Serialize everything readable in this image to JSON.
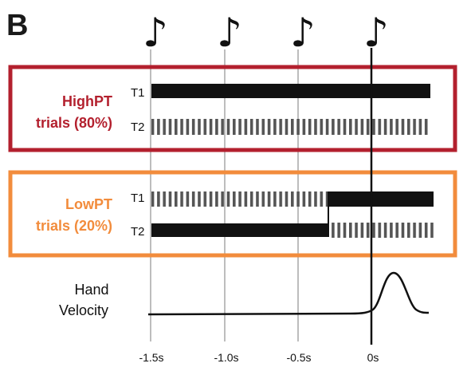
{
  "panel_letter": "B",
  "colors": {
    "high": "#b3202e",
    "low": "#f28c3c",
    "grid": "#bdbdbd",
    "ink": "#111111"
  },
  "high_box": {
    "title_line1": "HighPT",
    "title_line2": "trials (80%)",
    "t1_label": "T1",
    "t2_label": "T2"
  },
  "low_box": {
    "title_line1": "LowPT",
    "title_line2": "trials (20%)",
    "t1_label": "T1",
    "t2_label": "T2"
  },
  "velocity": {
    "label_line1": "Hand",
    "label_line2": "Velocity"
  },
  "axis": {
    "ticks": [
      {
        "label": "-1.5s",
        "value": -1.5
      },
      {
        "label": "-1.0s",
        "value": -1.0
      },
      {
        "label": "-0.5s",
        "value": -0.5
      },
      {
        "label": "0s",
        "value": 0
      }
    ],
    "switch_time": -0.3
  },
  "notes": {
    "icon": "eighth-note-icon",
    "glyph": "♪"
  }
}
